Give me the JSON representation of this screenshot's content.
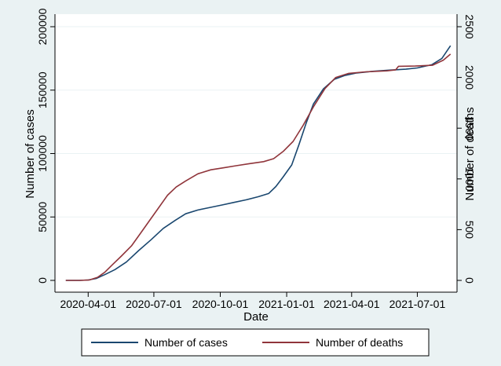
{
  "chart_data": {
    "type": "line",
    "xlabel": "Date",
    "ylabel_left": "Number of cases",
    "ylabel_right": "Number of deaths",
    "xlim": [
      "2020-02-15",
      "2021-08-25"
    ],
    "ylim_left": [
      0,
      200000
    ],
    "ylim_right": [
      0,
      2500
    ],
    "x_ticks": [
      "2020-04-01",
      "2020-07-01",
      "2020-10-01",
      "2021-01-01",
      "2021-04-01",
      "2021-07-01"
    ],
    "y_ticks_left": [
      0,
      50000,
      100000,
      150000,
      200000
    ],
    "y_ticks_left_labels": [
      "0",
      "50000",
      "100000",
      "150000",
      "200000"
    ],
    "y_ticks_right": [
      0,
      500,
      1000,
      1500,
      2000,
      2500
    ],
    "y_ticks_right_labels": [
      "0",
      "500",
      "1000",
      "1500",
      "2000",
      "2500"
    ],
    "grid": "horizontal",
    "legend_position": "bottom",
    "series": [
      {
        "name": "Number of cases",
        "axis": "left",
        "color": "#1a476f",
        "points": [
          [
            "2020-03-01",
            0
          ],
          [
            "2020-03-20",
            0
          ],
          [
            "2020-04-01",
            300
          ],
          [
            "2020-04-12",
            1500
          ],
          [
            "2020-04-24",
            4500
          ],
          [
            "2020-05-08",
            8500
          ],
          [
            "2020-05-24",
            14500
          ],
          [
            "2020-06-10",
            23500
          ],
          [
            "2020-06-27",
            32000
          ],
          [
            "2020-07-14",
            41000
          ],
          [
            "2020-07-31",
            47500
          ],
          [
            "2020-08-14",
            52500
          ],
          [
            "2020-08-31",
            55500
          ],
          [
            "2020-09-17",
            57500
          ],
          [
            "2020-10-04",
            59500
          ],
          [
            "2020-10-20",
            61500
          ],
          [
            "2020-11-06",
            63500
          ],
          [
            "2020-11-23",
            66000
          ],
          [
            "2020-12-07",
            68500
          ],
          [
            "2020-12-17",
            74000
          ],
          [
            "2020-12-27",
            81500
          ],
          [
            "2021-01-08",
            91000
          ],
          [
            "2021-01-18",
            107000
          ],
          [
            "2021-01-28",
            124000
          ],
          [
            "2021-02-07",
            139000
          ],
          [
            "2021-02-21",
            151000
          ],
          [
            "2021-03-08",
            158500
          ],
          [
            "2021-03-22",
            161500
          ],
          [
            "2021-04-08",
            163500
          ],
          [
            "2021-04-30",
            164800
          ],
          [
            "2021-05-25",
            165800
          ],
          [
            "2021-06-15",
            166500
          ],
          [
            "2021-07-01",
            167500
          ],
          [
            "2021-07-21",
            170000
          ],
          [
            "2021-08-04",
            175000
          ],
          [
            "2021-08-16",
            185000
          ]
        ]
      },
      {
        "name": "Number of deaths",
        "axis": "right",
        "color": "#90353b",
        "points": [
          [
            "2020-03-01",
            0
          ],
          [
            "2020-03-20",
            0
          ],
          [
            "2020-04-03",
            5
          ],
          [
            "2020-04-14",
            30
          ],
          [
            "2020-04-24",
            80
          ],
          [
            "2020-05-04",
            150
          ],
          [
            "2020-05-17",
            240
          ],
          [
            "2020-05-31",
            340
          ],
          [
            "2020-06-12",
            460
          ],
          [
            "2020-06-24",
            580
          ],
          [
            "2020-07-08",
            720
          ],
          [
            "2020-07-20",
            840
          ],
          [
            "2020-08-01",
            920
          ],
          [
            "2020-08-14",
            980
          ],
          [
            "2020-08-31",
            1050
          ],
          [
            "2020-09-18",
            1090
          ],
          [
            "2020-10-06",
            1110
          ],
          [
            "2020-10-23",
            1130
          ],
          [
            "2020-11-10",
            1150
          ],
          [
            "2020-11-30",
            1170
          ],
          [
            "2020-12-14",
            1200
          ],
          [
            "2020-12-27",
            1270
          ],
          [
            "2021-01-10",
            1370
          ],
          [
            "2021-01-24",
            1530
          ],
          [
            "2021-02-07",
            1710
          ],
          [
            "2021-02-23",
            1890
          ],
          [
            "2021-03-10",
            2000
          ],
          [
            "2021-03-28",
            2040
          ],
          [
            "2021-04-20",
            2055
          ],
          [
            "2021-05-20",
            2065
          ],
          [
            "2021-06-01",
            2075
          ],
          [
            "2021-06-05",
            2110
          ],
          [
            "2021-06-28",
            2112
          ],
          [
            "2021-07-22",
            2120
          ],
          [
            "2021-08-06",
            2170
          ],
          [
            "2021-08-16",
            2230
          ]
        ]
      }
    ]
  }
}
